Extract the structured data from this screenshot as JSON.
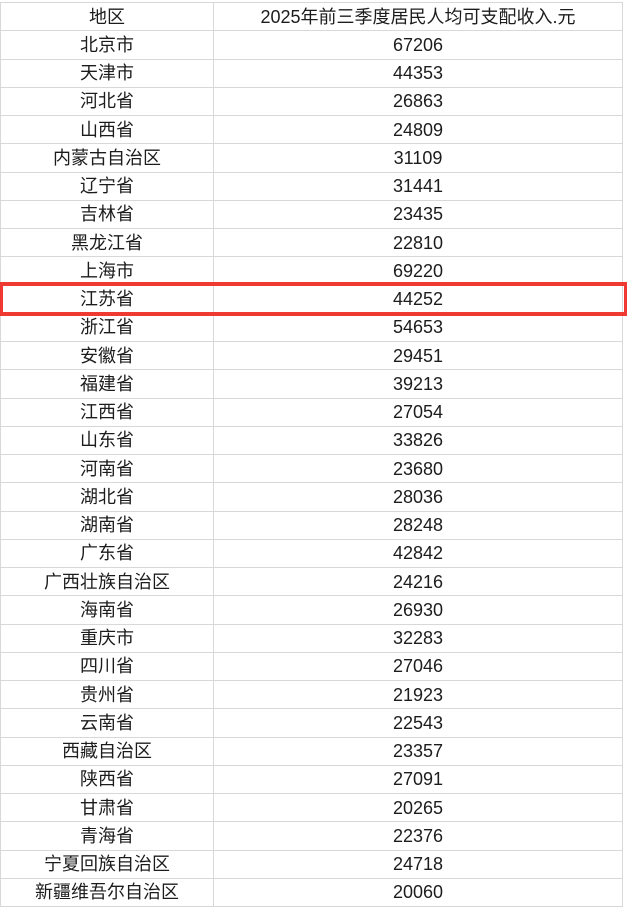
{
  "table": {
    "headers": [
      "地区",
      "2025年前三季度居民人均可支配收入.元"
    ],
    "rows": [
      {
        "region": "北京市",
        "income": "67206"
      },
      {
        "region": "天津市",
        "income": "44353"
      },
      {
        "region": "河北省",
        "income": "26863"
      },
      {
        "region": "山西省",
        "income": "24809"
      },
      {
        "region": "内蒙古自治区",
        "income": "31109"
      },
      {
        "region": "辽宁省",
        "income": "31441"
      },
      {
        "region": "吉林省",
        "income": "23435"
      },
      {
        "region": "黑龙江省",
        "income": "22810"
      },
      {
        "region": "上海市",
        "income": "69220"
      },
      {
        "region": "江苏省",
        "income": "44252",
        "highlighted": true
      },
      {
        "region": "浙江省",
        "income": "54653"
      },
      {
        "region": "安徽省",
        "income": "29451"
      },
      {
        "region": "福建省",
        "income": "39213"
      },
      {
        "region": "江西省",
        "income": "27054"
      },
      {
        "region": "山东省",
        "income": "33826"
      },
      {
        "region": "河南省",
        "income": "23680"
      },
      {
        "region": "湖北省",
        "income": "28036"
      },
      {
        "region": "湖南省",
        "income": "28248"
      },
      {
        "region": "广东省",
        "income": "42842"
      },
      {
        "region": "广西壮族自治区",
        "income": "24216"
      },
      {
        "region": "海南省",
        "income": "26930"
      },
      {
        "region": "重庆市",
        "income": "32283"
      },
      {
        "region": "四川省",
        "income": "27046"
      },
      {
        "region": "贵州省",
        "income": "21923"
      },
      {
        "region": "云南省",
        "income": "22543"
      },
      {
        "region": "西藏自治区",
        "income": "23357"
      },
      {
        "region": "陕西省",
        "income": "27091"
      },
      {
        "region": "甘肃省",
        "income": "20265"
      },
      {
        "region": "青海省",
        "income": "22376"
      },
      {
        "region": "宁夏回族自治区",
        "income": "24718"
      },
      {
        "region": "新疆维吾尔自治区",
        "income": "20060"
      }
    ],
    "highlighted_region": "江苏省"
  },
  "colors": {
    "grid_line": "#d8d8d8",
    "highlight_border": "#ee3a33",
    "text": "#1c1c1c",
    "background": "#ffffff"
  }
}
